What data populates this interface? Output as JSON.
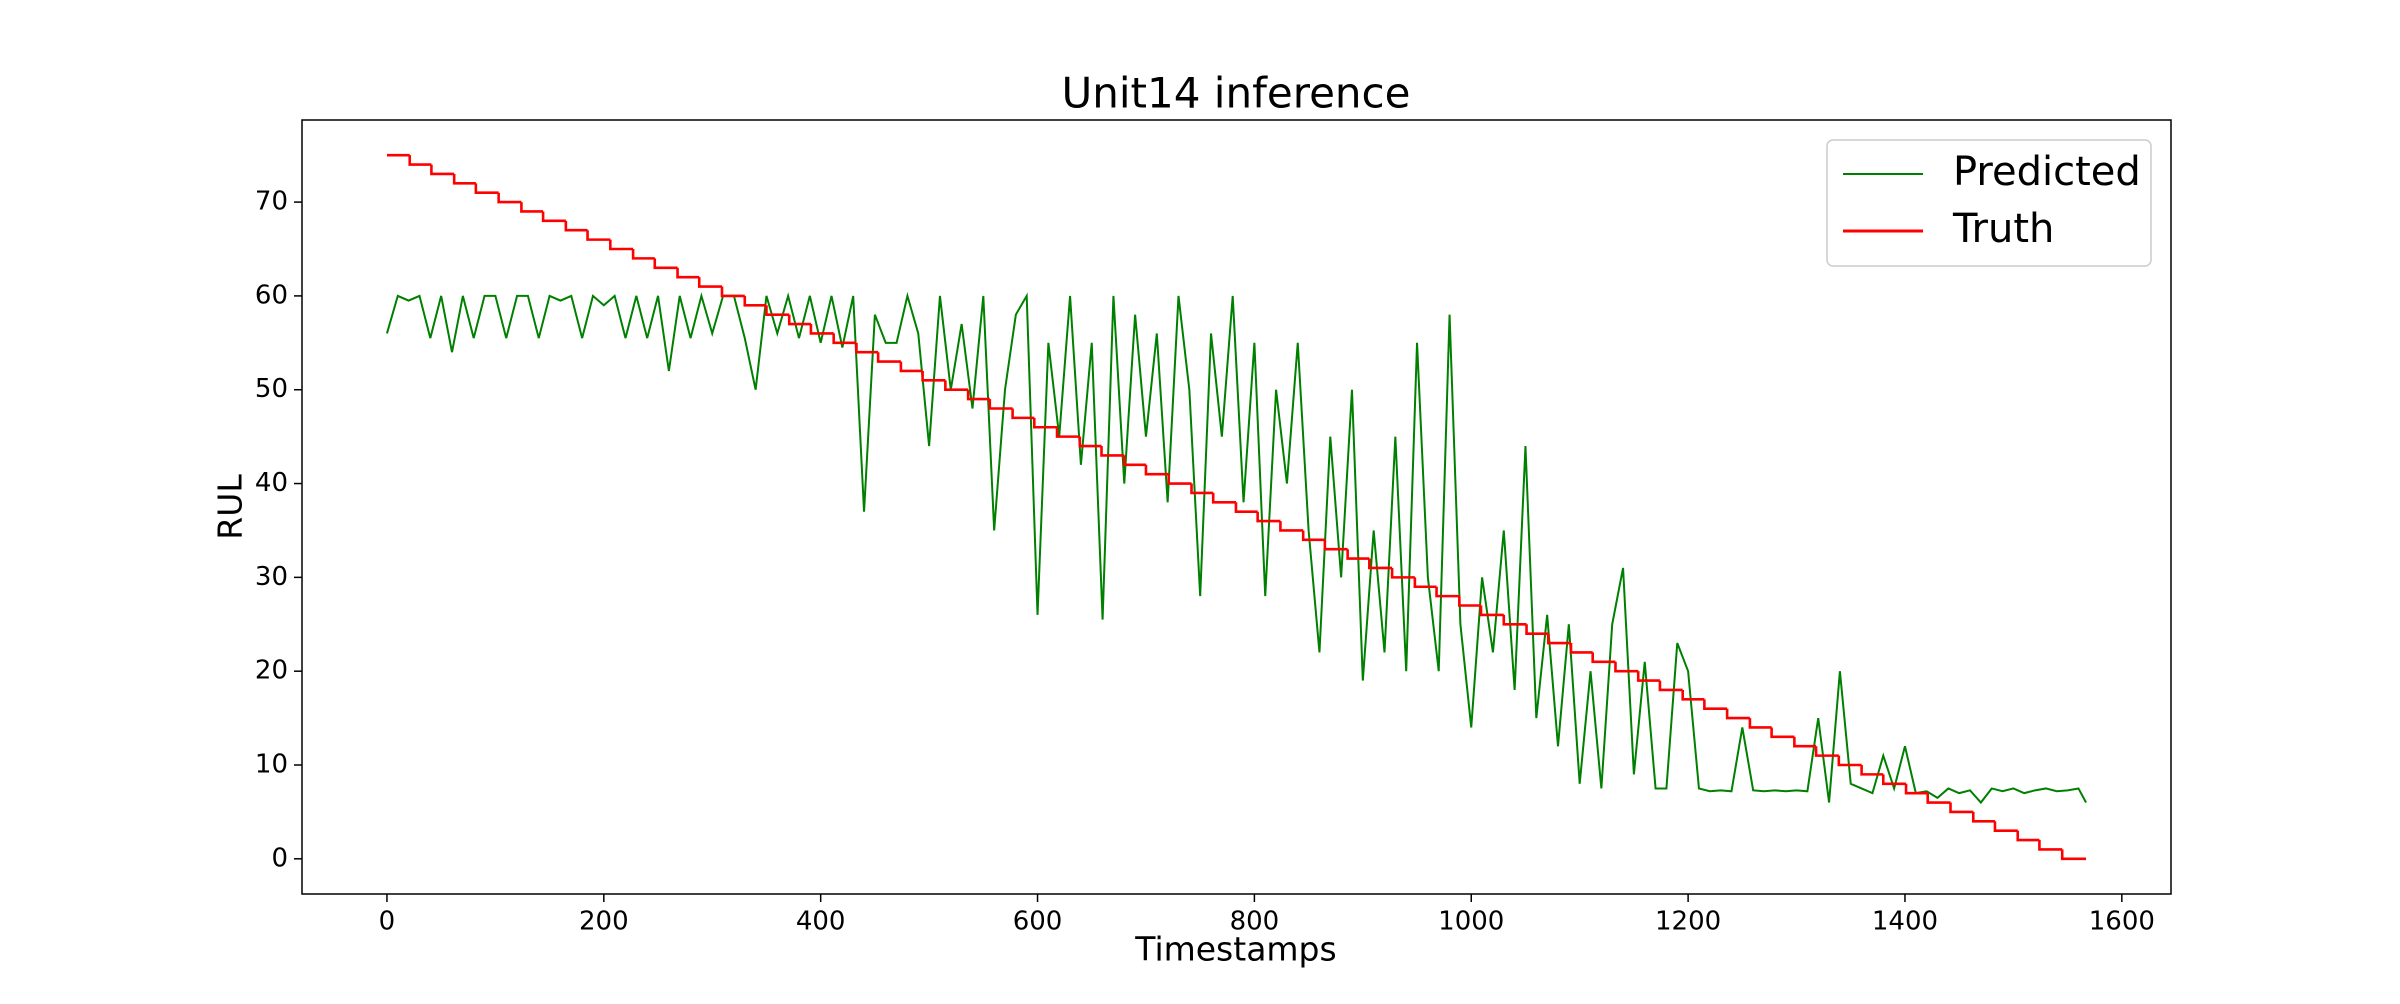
{
  "chart_data": {
    "type": "line",
    "title": "Unit14 inference",
    "xlabel": "Timestamps",
    "ylabel": "RUL",
    "xlim": [
      -78.35,
      1645.35
    ],
    "xticks": [
      0,
      200,
      400,
      600,
      800,
      1000,
      1200,
      1400,
      1600
    ],
    "ylim": [
      -3.75,
      78.75
    ],
    "yticks": [
      0,
      10,
      20,
      30,
      40,
      50,
      60,
      70
    ],
    "grid": false,
    "legend": "upper right",
    "series": [
      {
        "name": "Predicted",
        "color": "#008000",
        "step": false,
        "x": [
          0,
          10,
          20,
          30,
          40,
          50,
          60,
          70,
          80,
          90,
          100,
          110,
          120,
          130,
          140,
          150,
          160,
          170,
          180,
          190,
          200,
          210,
          220,
          230,
          240,
          250,
          260,
          270,
          280,
          290,
          300,
          310,
          320,
          330,
          340,
          350,
          360,
          370,
          380,
          390,
          400,
          410,
          420,
          430,
          440,
          450,
          460,
          470,
          480,
          490,
          500,
          510,
          520,
          530,
          540,
          550,
          560,
          570,
          580,
          590,
          600,
          610,
          620,
          630,
          640,
          650,
          660,
          670,
          680,
          690,
          700,
          710,
          720,
          730,
          740,
          750,
          760,
          770,
          780,
          790,
          800,
          810,
          820,
          830,
          840,
          850,
          860,
          870,
          880,
          890,
          900,
          910,
          920,
          930,
          940,
          950,
          960,
          970,
          980,
          990,
          1000,
          1010,
          1020,
          1030,
          1040,
          1050,
          1060,
          1070,
          1080,
          1090,
          1100,
          1110,
          1120,
          1130,
          1140,
          1150,
          1160,
          1170,
          1180,
          1190,
          1200,
          1210,
          1220,
          1230,
          1240,
          1250,
          1260,
          1270,
          1280,
          1290,
          1300,
          1310,
          1320,
          1330,
          1340,
          1350,
          1360,
          1370,
          1380,
          1390,
          1400,
          1410,
          1420,
          1430,
          1440,
          1450,
          1460,
          1470,
          1480,
          1490,
          1500,
          1510,
          1520,
          1530,
          1540,
          1550,
          1560,
          1567
        ],
        "values": [
          56,
          60,
          59.5,
          60,
          55.5,
          60,
          54,
          60,
          55.5,
          60,
          60,
          55.5,
          60,
          60,
          55.5,
          60,
          59.5,
          60,
          55.5,
          60,
          59,
          60,
          55.5,
          60,
          55.5,
          60,
          52,
          60,
          55.5,
          60,
          56,
          60,
          60,
          55.5,
          50,
          60,
          56,
          60,
          55.5,
          60,
          55,
          60,
          54.5,
          60,
          37,
          58,
          55,
          55,
          60,
          56,
          44,
          60,
          50,
          57,
          48,
          60,
          35,
          50,
          58,
          60,
          26,
          55,
          45,
          60,
          42,
          55,
          25.5,
          60,
          40,
          58,
          45,
          56,
          38,
          60,
          50,
          28,
          56,
          45,
          60,
          38,
          55,
          28,
          50,
          40,
          55,
          35,
          22,
          45,
          30,
          50,
          19,
          35,
          22,
          45,
          20,
          55,
          30,
          20,
          58,
          25,
          14,
          30,
          22,
          35,
          18,
          44,
          15,
          26,
          12,
          25,
          8,
          20,
          7.5,
          25,
          31,
          9,
          21,
          7.5,
          7.5,
          23,
          20,
          7.5,
          7.2,
          7.3,
          7.2,
          14,
          7.3,
          7.2,
          7.3,
          7.2,
          7.3,
          7.2,
          15,
          6,
          20,
          8,
          7.5,
          7,
          11,
          7.5,
          12,
          7,
          7.2,
          6.5,
          7.5,
          7,
          7.3,
          6,
          7.5,
          7.2,
          7.5,
          7,
          7.3,
          7.5,
          7.2,
          7.3,
          7.5,
          6
        ]
      },
      {
        "name": "Truth",
        "color": "#ff0000",
        "step": true,
        "x": [
          0,
          21,
          41,
          62,
          82,
          103,
          124,
          144,
          165,
          185,
          206,
          227,
          247,
          268,
          288,
          309,
          330,
          350,
          371,
          391,
          412,
          433,
          453,
          474,
          494,
          515,
          536,
          556,
          577,
          597,
          618,
          639,
          659,
          680,
          700,
          721,
          742,
          762,
          783,
          803,
          824,
          845,
          865,
          886,
          906,
          927,
          948,
          968,
          989,
          1009,
          1030,
          1051,
          1071,
          1092,
          1112,
          1133,
          1154,
          1174,
          1195,
          1215,
          1236,
          1257,
          1277,
          1298,
          1318,
          1339,
          1360,
          1380,
          1401,
          1421,
          1442,
          1463,
          1483,
          1504,
          1524,
          1545,
          1567
        ],
        "values": [
          75,
          74,
          73,
          72,
          71,
          70,
          69,
          68,
          67,
          66,
          65,
          64,
          63,
          62,
          61,
          60,
          59,
          58,
          57,
          56,
          55,
          54,
          53,
          52,
          51,
          50,
          49,
          48,
          47,
          46,
          45,
          44,
          43,
          42,
          41,
          40,
          39,
          38,
          37,
          36,
          35,
          34,
          33,
          32,
          31,
          30,
          29,
          28,
          27,
          26,
          25,
          24,
          23,
          22,
          21,
          20,
          19,
          18,
          17,
          16,
          15,
          14,
          13,
          12,
          11,
          10,
          9,
          8,
          7,
          6,
          5,
          4,
          3,
          2,
          1,
          0,
          0
        ]
      }
    ]
  }
}
